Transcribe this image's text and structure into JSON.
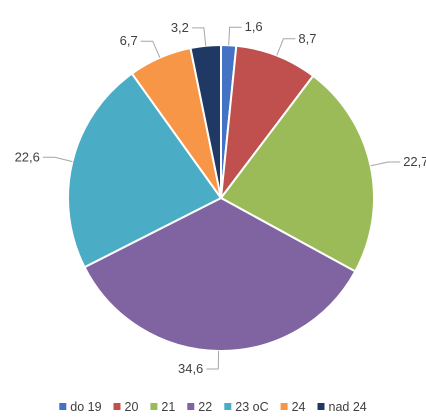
{
  "chart_data": {
    "type": "pie",
    "title": "",
    "start_angle_deg": 0,
    "direction": "clockwise",
    "legend_position": "bottom",
    "slices": [
      {
        "name": "do 19",
        "value": 1.6,
        "label": "1,6",
        "color": "#4472C4"
      },
      {
        "name": "20",
        "value": 8.7,
        "label": "8,7",
        "color": "#C0504D"
      },
      {
        "name": "21",
        "value": 22.7,
        "label": "22,7",
        "color": "#9BBB59"
      },
      {
        "name": "22",
        "value": 34.6,
        "label": "34,6",
        "color": "#8064A2"
      },
      {
        "name": "23 oC",
        "value": 22.6,
        "label": "22,6",
        "color": "#4BACC6"
      },
      {
        "name": "24",
        "value": 6.7,
        "label": "6,7",
        "color": "#F79646"
      },
      {
        "name": "nad 24",
        "value": 3.2,
        "label": "3,2",
        "color": "#1F3864"
      }
    ]
  }
}
